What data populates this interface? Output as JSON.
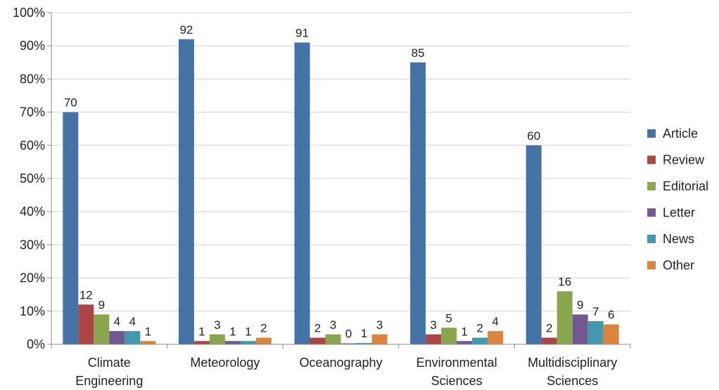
{
  "chart_data": {
    "type": "bar",
    "categories": [
      [
        "Climate",
        "Engineering"
      ],
      [
        "Meteorology"
      ],
      [
        "Oceanography"
      ],
      [
        "Environmental",
        "Sciences"
      ],
      [
        "Multidisciplinary",
        "Sciences"
      ]
    ],
    "series": [
      {
        "name": "Article",
        "color": "#4572a7",
        "values": [
          70,
          92,
          91,
          85,
          60
        ]
      },
      {
        "name": "Review",
        "color": "#aa4643",
        "values": [
          12,
          1,
          2,
          3,
          2
        ]
      },
      {
        "name": "Editorial",
        "color": "#89a54e",
        "values": [
          9,
          3,
          3,
          5,
          16
        ]
      },
      {
        "name": "Letter",
        "color": "#71588f",
        "values": [
          4,
          1,
          0.3,
          1,
          9
        ]
      },
      {
        "name": "News",
        "color": "#4198af",
        "values": [
          4,
          1,
          0.4,
          2,
          7
        ]
      },
      {
        "name": "Other",
        "color": "#db843d",
        "values": [
          1,
          2,
          3,
          4,
          6
        ]
      }
    ],
    "data_labels": [
      [
        "70",
        "92",
        "91",
        "85",
        "60"
      ],
      [
        "12",
        "1",
        "2",
        "3",
        "2"
      ],
      [
        "9",
        "3",
        "3",
        "5",
        "16"
      ],
      [
        "4",
        "1",
        "0",
        "1",
        "9"
      ],
      [
        "4",
        "1",
        "1",
        "2",
        "7"
      ],
      [
        "1",
        "2",
        "3",
        "4",
        "6"
      ]
    ],
    "y_ticks": [
      "0%",
      "10%",
      "20%",
      "30%",
      "40%",
      "50%",
      "60%",
      "70%",
      "80%",
      "90%",
      "100%"
    ],
    "ylim": [
      0,
      100
    ],
    "grid": true,
    "legend_position": "right"
  }
}
